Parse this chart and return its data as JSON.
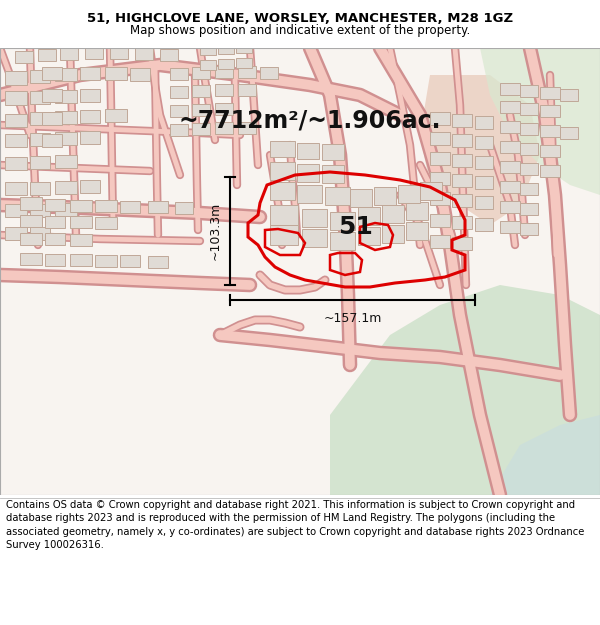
{
  "title_line1": "51, HIGHCLOVE LANE, WORSLEY, MANCHESTER, M28 1GZ",
  "title_line2": "Map shows position and indicative extent of the property.",
  "area_text": "~7712m²/~1.906ac.",
  "label_51": "51",
  "dim_height": "~103.3m",
  "dim_width": "~157.1m",
  "footer_text": "Contains OS data © Crown copyright and database right 2021. This information is subject to Crown copyright and database rights 2023 and is reproduced with the permission of HM Land Registry. The polygons (including the associated geometry, namely x, y co-ordinates) are subject to Crown copyright and database rights 2023 Ordnance Survey 100026316.",
  "property_edge_color": "#dd0000",
  "property_edge_width": 2.2,
  "road_fill": "#f5c8c0",
  "road_edge": "#d09090",
  "building_fill": "#e0dbd5",
  "building_edge": "#c0a898",
  "map_bg": "#f8f4f0",
  "green_fill": "#d8e8d0",
  "green2_fill": "#cce0c8",
  "salmon_fill": "#e8c8b8",
  "blue_fill": "#c8dce0",
  "header_bg": "#ffffff",
  "footer_bg": "#ffffff",
  "title_fontsize": 9.5,
  "subtitle_fontsize": 8.5,
  "area_fontsize": 17,
  "label_fontsize": 18,
  "dim_fontsize": 9,
  "footer_fontsize": 7.2
}
